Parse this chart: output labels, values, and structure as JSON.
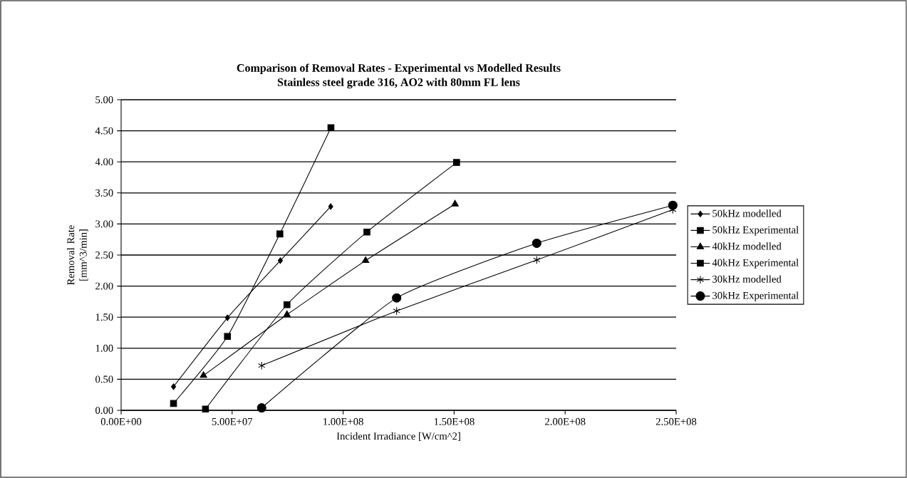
{
  "chart_data": {
    "type": "line",
    "title": "Comparison of Removal Rates - Experimental vs Modelled Results",
    "subtitle": "Stainless steel grade 316, AO2 with 80mm FL lens",
    "xlabel": "Incident Irradiance [W/cm^2]",
    "ylabel": "Removal Rate [mm^3/min]",
    "series": [
      {
        "name": "50kHz modelled",
        "color": "#000000",
        "marker": "diamond",
        "x": [
          23600000,
          47900000,
          71700000,
          94400000
        ],
        "values": [
          0.38,
          1.49,
          2.41,
          3.28
        ]
      },
      {
        "name": "50kHz Experimental",
        "color": "#000000",
        "marker": "square",
        "x": [
          23600000,
          47900000,
          71500000,
          94500000
        ],
        "values": [
          0.11,
          1.19,
          2.84,
          4.55
        ]
      },
      {
        "name": "40kHz modelled",
        "color": "#000000",
        "marker": "triangle",
        "x": [
          37100000,
          74700000,
          110100000,
          150400000
        ],
        "values": [
          0.56,
          1.54,
          2.41,
          3.32
        ]
      },
      {
        "name": "40kHz Experimental",
        "color": "#000000",
        "marker": "square",
        "x": [
          38000000,
          74700000,
          110700000,
          151100000
        ],
        "values": [
          0.02,
          1.7,
          2.87,
          3.99
        ]
      },
      {
        "name": "30kHz modelled",
        "color": "#000000",
        "marker": "cross",
        "x": [
          63300000,
          124100000,
          187200000,
          248500000
        ],
        "values": [
          0.72,
          1.6,
          2.42,
          3.23
        ]
      },
      {
        "name": "30kHz Experimental",
        "color": "#000000",
        "marker": "circle",
        "x": [
          63300000,
          124100000,
          187200000,
          248500000
        ],
        "values": [
          0.04,
          1.81,
          2.69,
          3.3
        ]
      }
    ],
    "xlim": [
      0,
      250000000
    ],
    "ylim": [
      0,
      5
    ],
    "xticks": [
      {
        "value": 0,
        "label": "0.00E+00"
      },
      {
        "value": 50000000,
        "label": "5.00E+07"
      },
      {
        "value": 100000000,
        "label": "1.00E+08"
      },
      {
        "value": 150000000,
        "label": "1.50E+08"
      },
      {
        "value": 200000000,
        "label": "2.00E+08"
      },
      {
        "value": 250000000,
        "label": "2.50E+08"
      }
    ],
    "yticks": [
      {
        "value": 0,
        "label": "0.00"
      },
      {
        "value": 0.5,
        "label": "0.50"
      },
      {
        "value": 1,
        "label": "1.00"
      },
      {
        "value": 1.5,
        "label": "1.50"
      },
      {
        "value": 2,
        "label": "2.00"
      },
      {
        "value": 2.5,
        "label": "2.50"
      },
      {
        "value": 3,
        "label": "3.00"
      },
      {
        "value": 3.5,
        "label": "3.50"
      },
      {
        "value": 4,
        "label": "4.00"
      },
      {
        "value": 4.5,
        "label": "4.50"
      },
      {
        "value": 5,
        "label": "5.00"
      }
    ],
    "grid": "y",
    "legend": "right",
    "line_style": "solid"
  }
}
